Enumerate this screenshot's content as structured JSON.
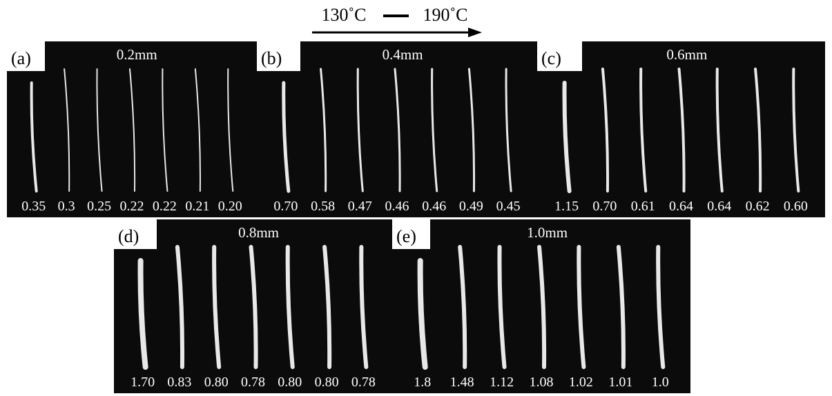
{
  "header": {
    "start": "130˚C",
    "end": "190˚C"
  },
  "panels": [
    {
      "label": "(a)",
      "size": "0.2mm",
      "values": [
        "0.35",
        "0.3",
        "0.25",
        "0.22",
        "0.22",
        "0.21",
        "0.20"
      ]
    },
    {
      "label": "(b)",
      "size": "0.4mm",
      "values": [
        "0.70",
        "0.58",
        "0.47",
        "0.46",
        "0.46",
        "0.49",
        "0.45"
      ]
    },
    {
      "label": "(c)",
      "size": "0.6mm",
      "values": [
        "1.15",
        "0.70",
        "0.61",
        "0.64",
        "0.64",
        "0.62",
        "0.60"
      ]
    },
    {
      "label": "(d)",
      "size": "0.8mm",
      "values": [
        "1.70",
        "0.83",
        "0.80",
        "0.78",
        "0.80",
        "0.80",
        "0.78"
      ]
    },
    {
      "label": "(e)",
      "size": "1.0mm",
      "values": [
        "1.8",
        "1.48",
        "1.12",
        "1.08",
        "1.02",
        "1.01",
        "1.0"
      ]
    }
  ]
}
